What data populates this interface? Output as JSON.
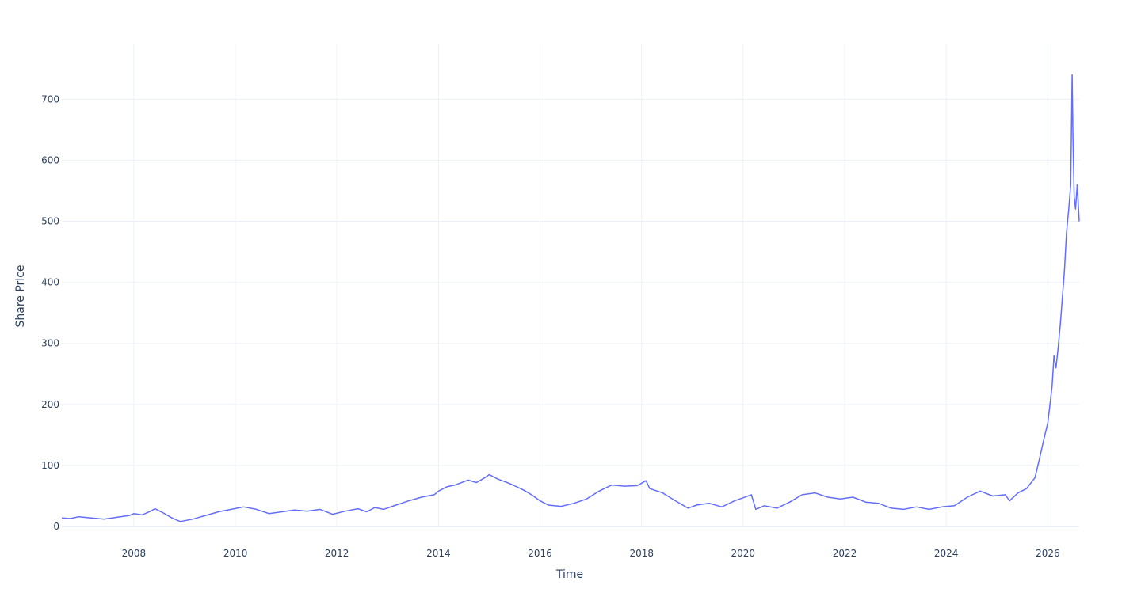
{
  "chart_data": {
    "type": "line",
    "title": "",
    "xlabel": "Time",
    "ylabel": "Share Price",
    "x_ticks": [
      "2008",
      "2010",
      "2012",
      "2014",
      "2016",
      "2018",
      "2020",
      "2022",
      "2024",
      "2026"
    ],
    "y_ticks": [
      0,
      100,
      200,
      300,
      400,
      500,
      600,
      700
    ],
    "xlim": [
      "2006-08-01",
      "2026-08-15"
    ],
    "ylim": [
      0,
      790
    ],
    "grid": true,
    "legend": "none",
    "series_color": "#636efa",
    "series": [
      {
        "x": [
          "2006-08-01",
          "2006-10-01",
          "2006-12-01",
          "2007-03-01",
          "2007-06-01",
          "2007-09-01",
          "2007-12-01",
          "2008-01-01",
          "2008-03-01",
          "2008-05-01",
          "2008-06-01",
          "2008-08-01",
          "2008-10-01",
          "2008-12-01",
          "2009-03-01",
          "2009-06-01",
          "2009-09-01",
          "2009-12-01",
          "2010-03-01",
          "2010-06-01",
          "2010-09-01",
          "2010-12-01",
          "2011-03-01",
          "2011-06-01",
          "2011-09-01",
          "2011-12-01",
          "2012-03-01",
          "2012-06-01",
          "2012-08-01",
          "2012-10-01",
          "2012-12-01",
          "2013-03-01",
          "2013-06-01",
          "2013-09-01",
          "2013-12-01",
          "2014-01-01",
          "2014-03-01",
          "2014-05-01",
          "2014-08-01",
          "2014-10-01",
          "2014-12-01",
          "2015-01-01",
          "2015-03-01",
          "2015-06-01",
          "2015-09-01",
          "2015-11-01",
          "2016-01-01",
          "2016-03-01",
          "2016-06-01",
          "2016-09-01",
          "2016-12-01",
          "2017-03-01",
          "2017-06-01",
          "2017-09-01",
          "2017-12-01",
          "2018-02-01",
          "2018-03-01",
          "2018-06-01",
          "2018-09-01",
          "2018-12-01",
          "2019-02-01",
          "2019-05-01",
          "2019-08-01",
          "2019-11-01",
          "2020-01-01",
          "2020-03-01",
          "2020-04-01",
          "2020-06-01",
          "2020-09-01",
          "2020-12-01",
          "2021-03-01",
          "2021-06-01",
          "2021-09-01",
          "2021-12-01",
          "2022-03-01",
          "2022-06-01",
          "2022-09-01",
          "2022-12-01",
          "2023-03-01",
          "2023-06-01",
          "2023-09-01",
          "2023-12-01",
          "2024-03-01",
          "2024-06-01",
          "2024-09-01",
          "2024-12-01",
          "2025-03-01",
          "2025-04-01",
          "2025-06-01",
          "2025-08-01",
          "2025-10-01",
          "2025-11-01",
          "2025-12-01",
          "2026-01-01",
          "2026-02-01",
          "2026-02-15",
          "2026-03-01",
          "2026-03-15",
          "2026-04-01",
          "2026-05-01",
          "2026-05-15",
          "2026-06-01",
          "2026-06-15",
          "2026-06-25",
          "2026-07-01",
          "2026-07-10",
          "2026-07-20",
          "2026-08-01",
          "2026-08-15"
        ],
        "y": [
          14,
          13,
          16,
          14,
          12,
          15,
          18,
          21,
          19,
          25,
          29,
          22,
          14,
          8,
          12,
          18,
          24,
          28,
          32,
          28,
          21,
          24,
          27,
          25,
          28,
          20,
          25,
          29,
          24,
          31,
          28,
          35,
          42,
          48,
          52,
          58,
          65,
          68,
          76,
          72,
          80,
          85,
          78,
          70,
          60,
          52,
          42,
          35,
          33,
          38,
          45,
          58,
          68,
          66,
          67,
          75,
          62,
          55,
          42,
          30,
          35,
          38,
          32,
          42,
          47,
          52,
          28,
          34,
          30,
          40,
          52,
          55,
          48,
          45,
          48,
          40,
          38,
          30,
          28,
          32,
          28,
          32,
          34,
          48,
          58,
          50,
          52,
          42,
          55,
          62,
          80,
          110,
          140,
          170,
          230,
          280,
          260,
          290,
          330,
          420,
          480,
          520,
          560,
          740,
          640,
          540,
          520,
          560,
          500
        ]
      }
    ]
  }
}
